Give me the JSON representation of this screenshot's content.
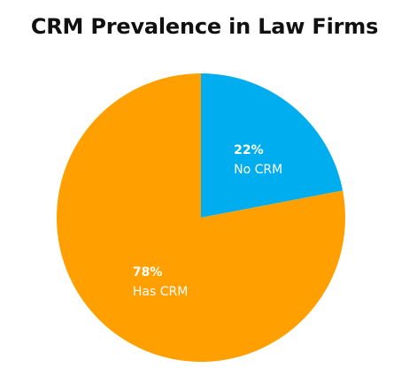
{
  "chart_data": {
    "type": "pie",
    "title": "CRM Prevalence in Law Firms",
    "slices": [
      {
        "label": "No CRM",
        "value": 22,
        "value_label": "22%",
        "color": "#00AEEF"
      },
      {
        "label": "Has CRM",
        "value": 78,
        "value_label": "78%",
        "color": "#FFA000"
      }
    ],
    "start": "12 o'clock",
    "direction": "clockwise",
    "legend": "none"
  }
}
